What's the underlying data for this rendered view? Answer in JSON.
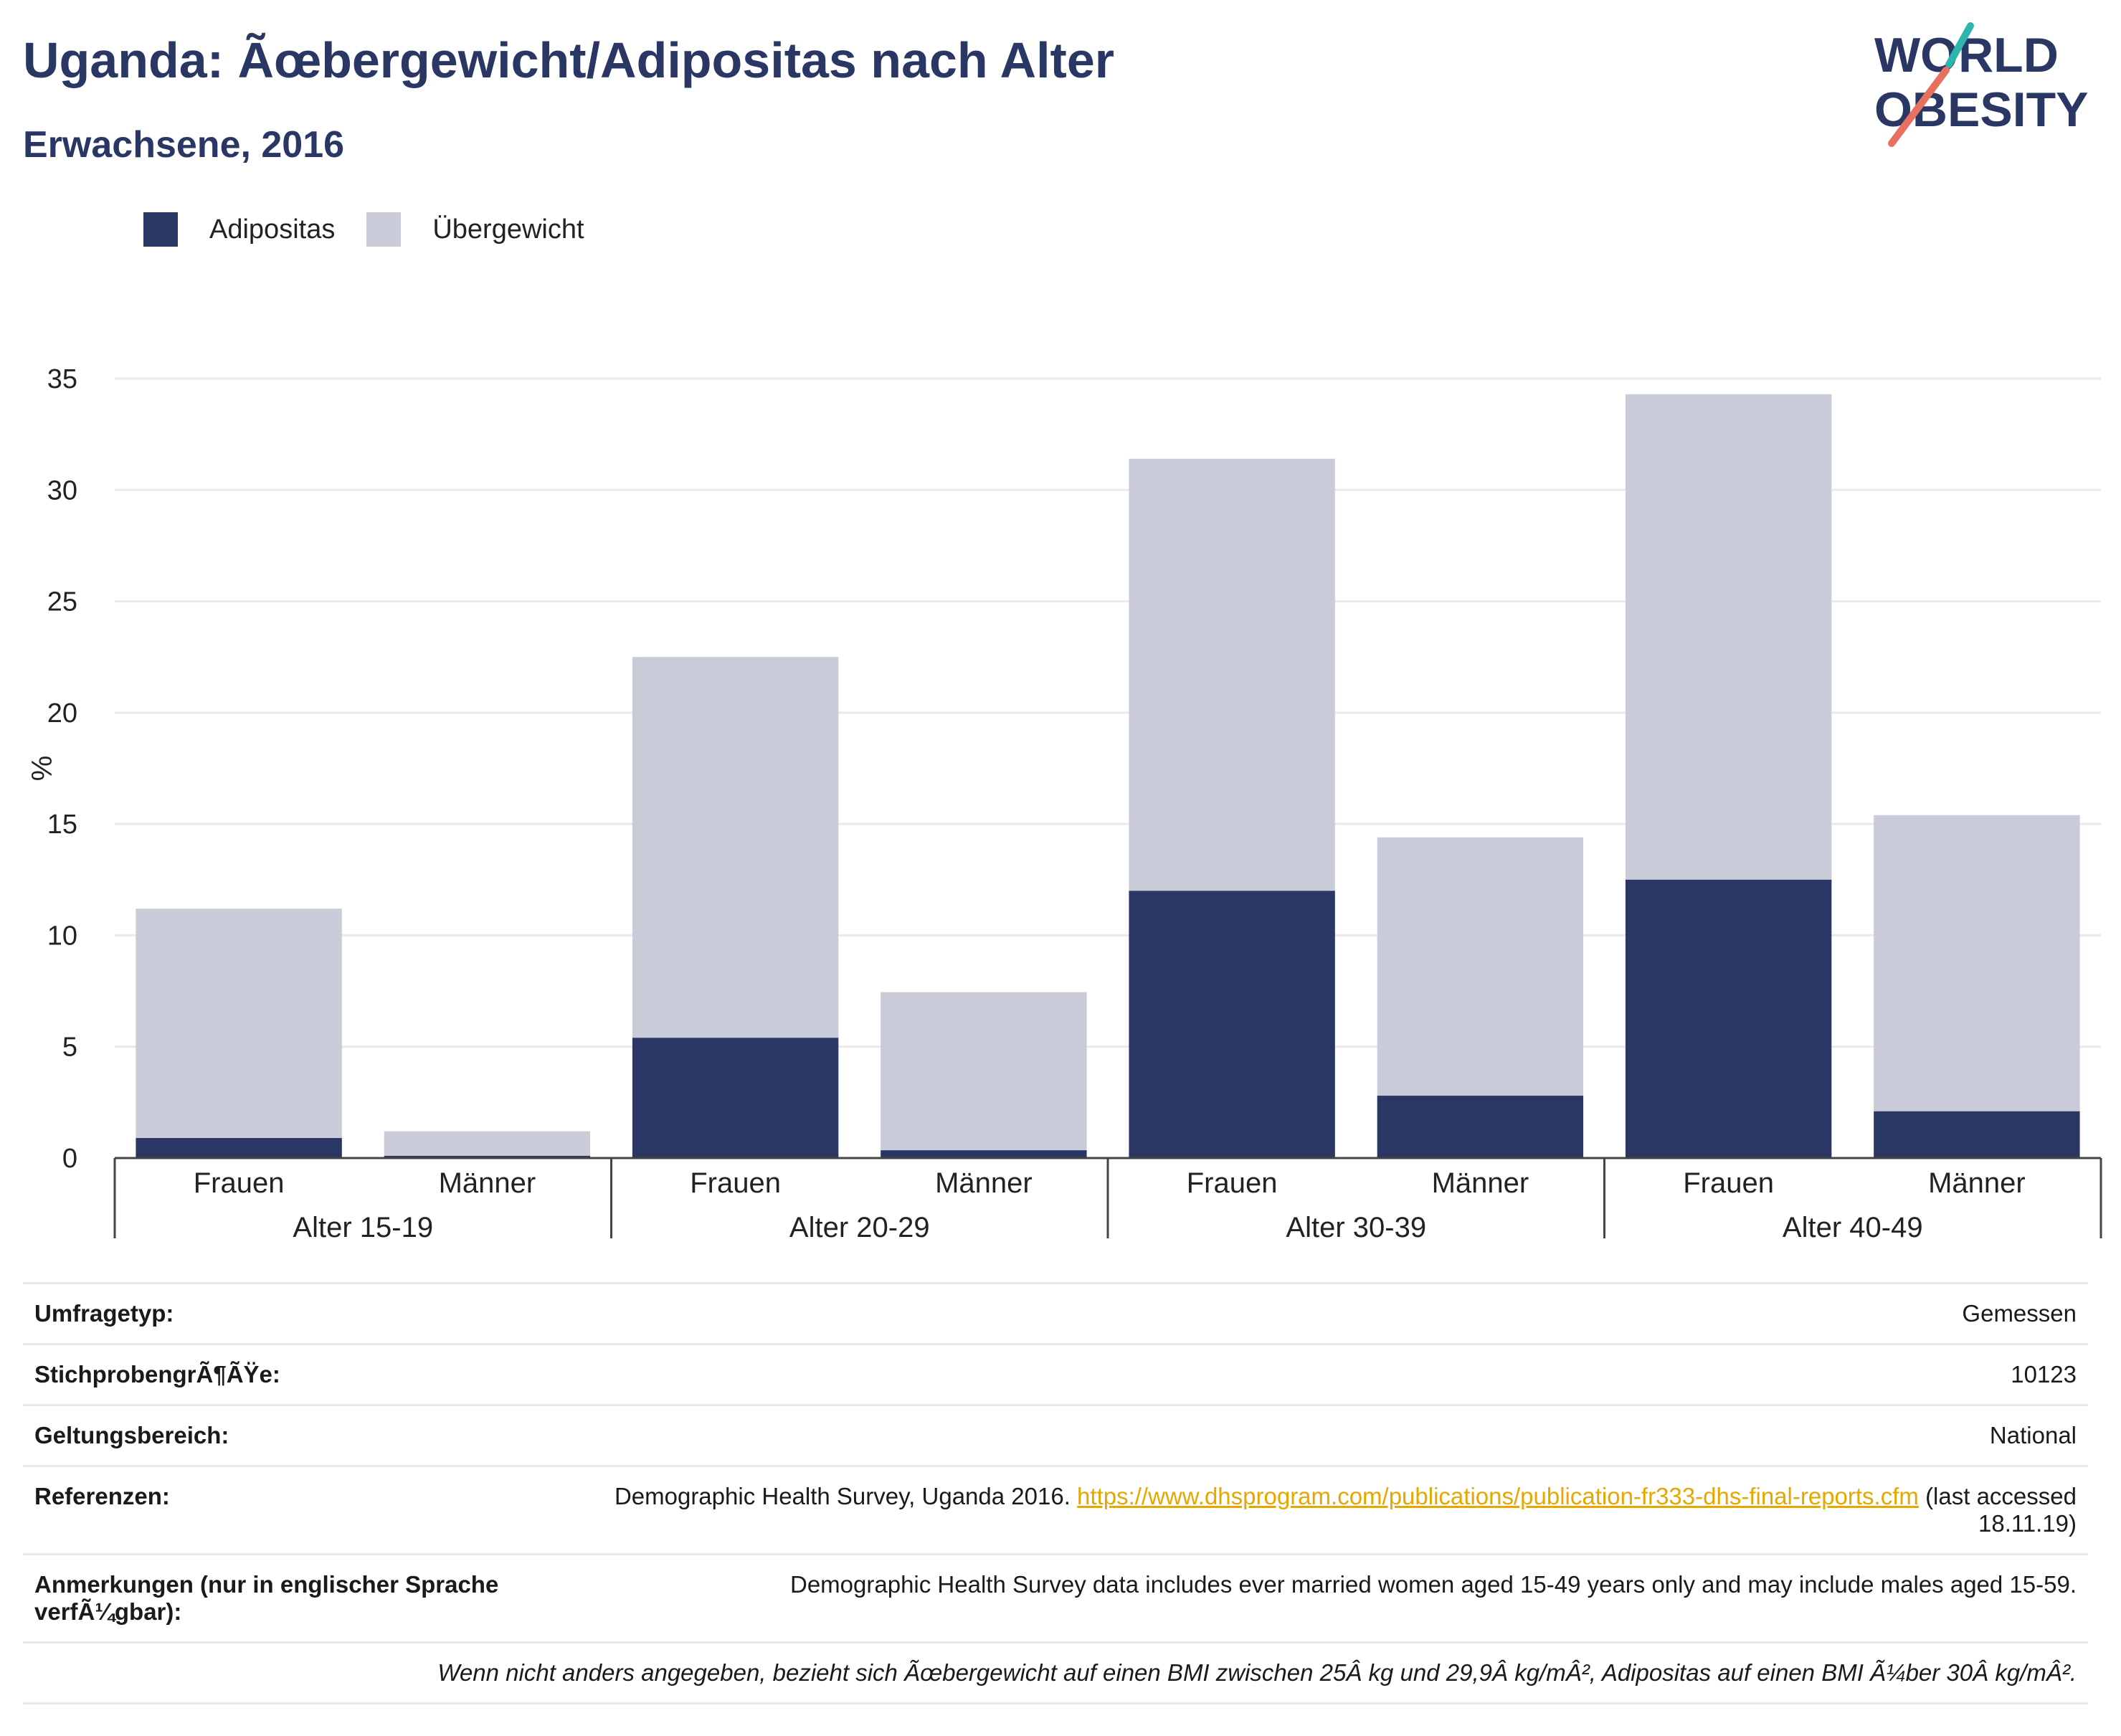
{
  "header": {
    "title": "Uganda: Ãœbergewicht/Adipositas nach Alter",
    "subtitle": "Erwachsene, 2016",
    "logo_line1": "WORLD",
    "logo_line2": "OBESITY"
  },
  "colors": {
    "adipositas": "#2a3664",
    "uebergewicht": "#c9ccd8",
    "title": "#2a3664",
    "grid": "#e9e9ee",
    "link": "#e6a700",
    "logo_teal": "#2bb6b0",
    "logo_coral": "#e8705f"
  },
  "legend": {
    "items": [
      {
        "label": "Adipositas",
        "color": "#2a3664"
      },
      {
        "label": "Übergewicht",
        "color": "#c9ccd8"
      }
    ]
  },
  "chart_data": {
    "type": "bar",
    "stacked": true,
    "ylabel": "%",
    "ylim": [
      0,
      35
    ],
    "yticks": [
      0,
      5,
      10,
      15,
      20,
      25,
      30,
      35
    ],
    "grid": true,
    "legend_position": "top-left",
    "groups": [
      {
        "label": "Alter 15-19",
        "categories": [
          "Frauen",
          "Männer"
        ]
      },
      {
        "label": "Alter 20-29",
        "categories": [
          "Frauen",
          "Männer"
        ]
      },
      {
        "label": "Alter 30-39",
        "categories": [
          "Frauen",
          "Männer"
        ]
      },
      {
        "label": "Alter 40-49",
        "categories": [
          "Frauen",
          "Männer"
        ]
      }
    ],
    "series": [
      {
        "name": "Adipositas",
        "values": [
          0.9,
          0.1,
          5.4,
          0.35,
          12.0,
          2.8,
          12.5,
          2.1
        ]
      },
      {
        "name": "Übergewicht",
        "values": [
          10.3,
          1.1,
          17.1,
          7.1,
          19.4,
          11.6,
          21.8,
          13.3
        ]
      }
    ]
  },
  "info": {
    "umfragetyp_key": "Umfragetyp:",
    "umfragetyp_value": "Gemessen",
    "stichprobe_key": "StichprobengrÃ¶ÃŸe:",
    "stichprobe_value": "10123",
    "geltung_key": "Geltungsbereich:",
    "geltung_value": "National",
    "referenzen_key": "Referenzen:",
    "referenzen_text": "Demographic Health Survey, Uganda 2016.",
    "referenzen_link": "https://www.dhsprogram.com/publications/publication-fr333-dhs-final-reports.cfm",
    "referenzen_suffix": "(last accessed 18.11.19)",
    "anmerkungen_key": "Anmerkungen (nur in englischer Sprache verfÃ¼gbar):",
    "anmerkungen_value": "Demographic Health Survey data includes ever married women aged 15-49 years only and may include males aged 15-59.",
    "footnote": "Wenn nicht anders angegeben, bezieht sich Ãœbergewicht auf einen BMI zwischen 25Â kg und 29,9Â kg/mÂ², Adipositas auf einen BMI Ã¼ber 30Â kg/mÂ²."
  }
}
